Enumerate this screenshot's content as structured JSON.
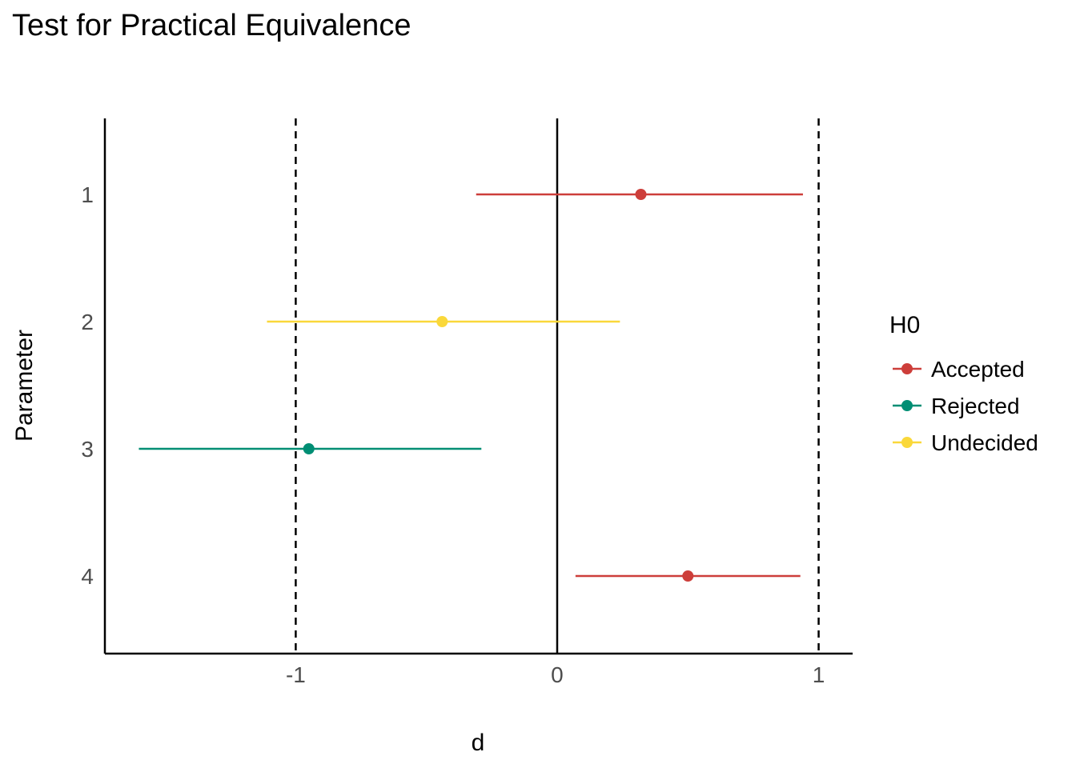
{
  "chart_data": {
    "type": "errorbar",
    "title": "Test for Practical Equivalence",
    "xlabel": "d",
    "ylabel": "Parameter",
    "xlim": [
      -1.73,
      1.13
    ],
    "x_ticks": [
      "-1",
      "0",
      "1"
    ],
    "x_tick_values": [
      -1,
      0,
      1
    ],
    "categories": [
      "1",
      "2",
      "3",
      "4"
    ],
    "rope": [
      -1,
      1
    ],
    "reference_line": 0,
    "points": [
      {
        "parameter": "1",
        "estimate": 0.32,
        "ci_low": -0.31,
        "ci_high": 0.94,
        "h0": "Accepted"
      },
      {
        "parameter": "2",
        "estimate": -0.44,
        "ci_low": -1.11,
        "ci_high": 0.24,
        "h0": "Undecided"
      },
      {
        "parameter": "3",
        "estimate": -0.95,
        "ci_low": -1.6,
        "ci_high": -0.29,
        "h0": "Rejected"
      },
      {
        "parameter": "4",
        "estimate": 0.5,
        "ci_low": 0.07,
        "ci_high": 0.93,
        "h0": "Accepted"
      }
    ],
    "legend": {
      "title": "H0",
      "position": "right",
      "items": [
        {
          "label": "Accepted",
          "color": "#cd3e3a"
        },
        {
          "label": "Rejected",
          "color": "#008e74"
        },
        {
          "label": "Undecided",
          "color": "#fad83a"
        }
      ]
    },
    "grid": false
  }
}
